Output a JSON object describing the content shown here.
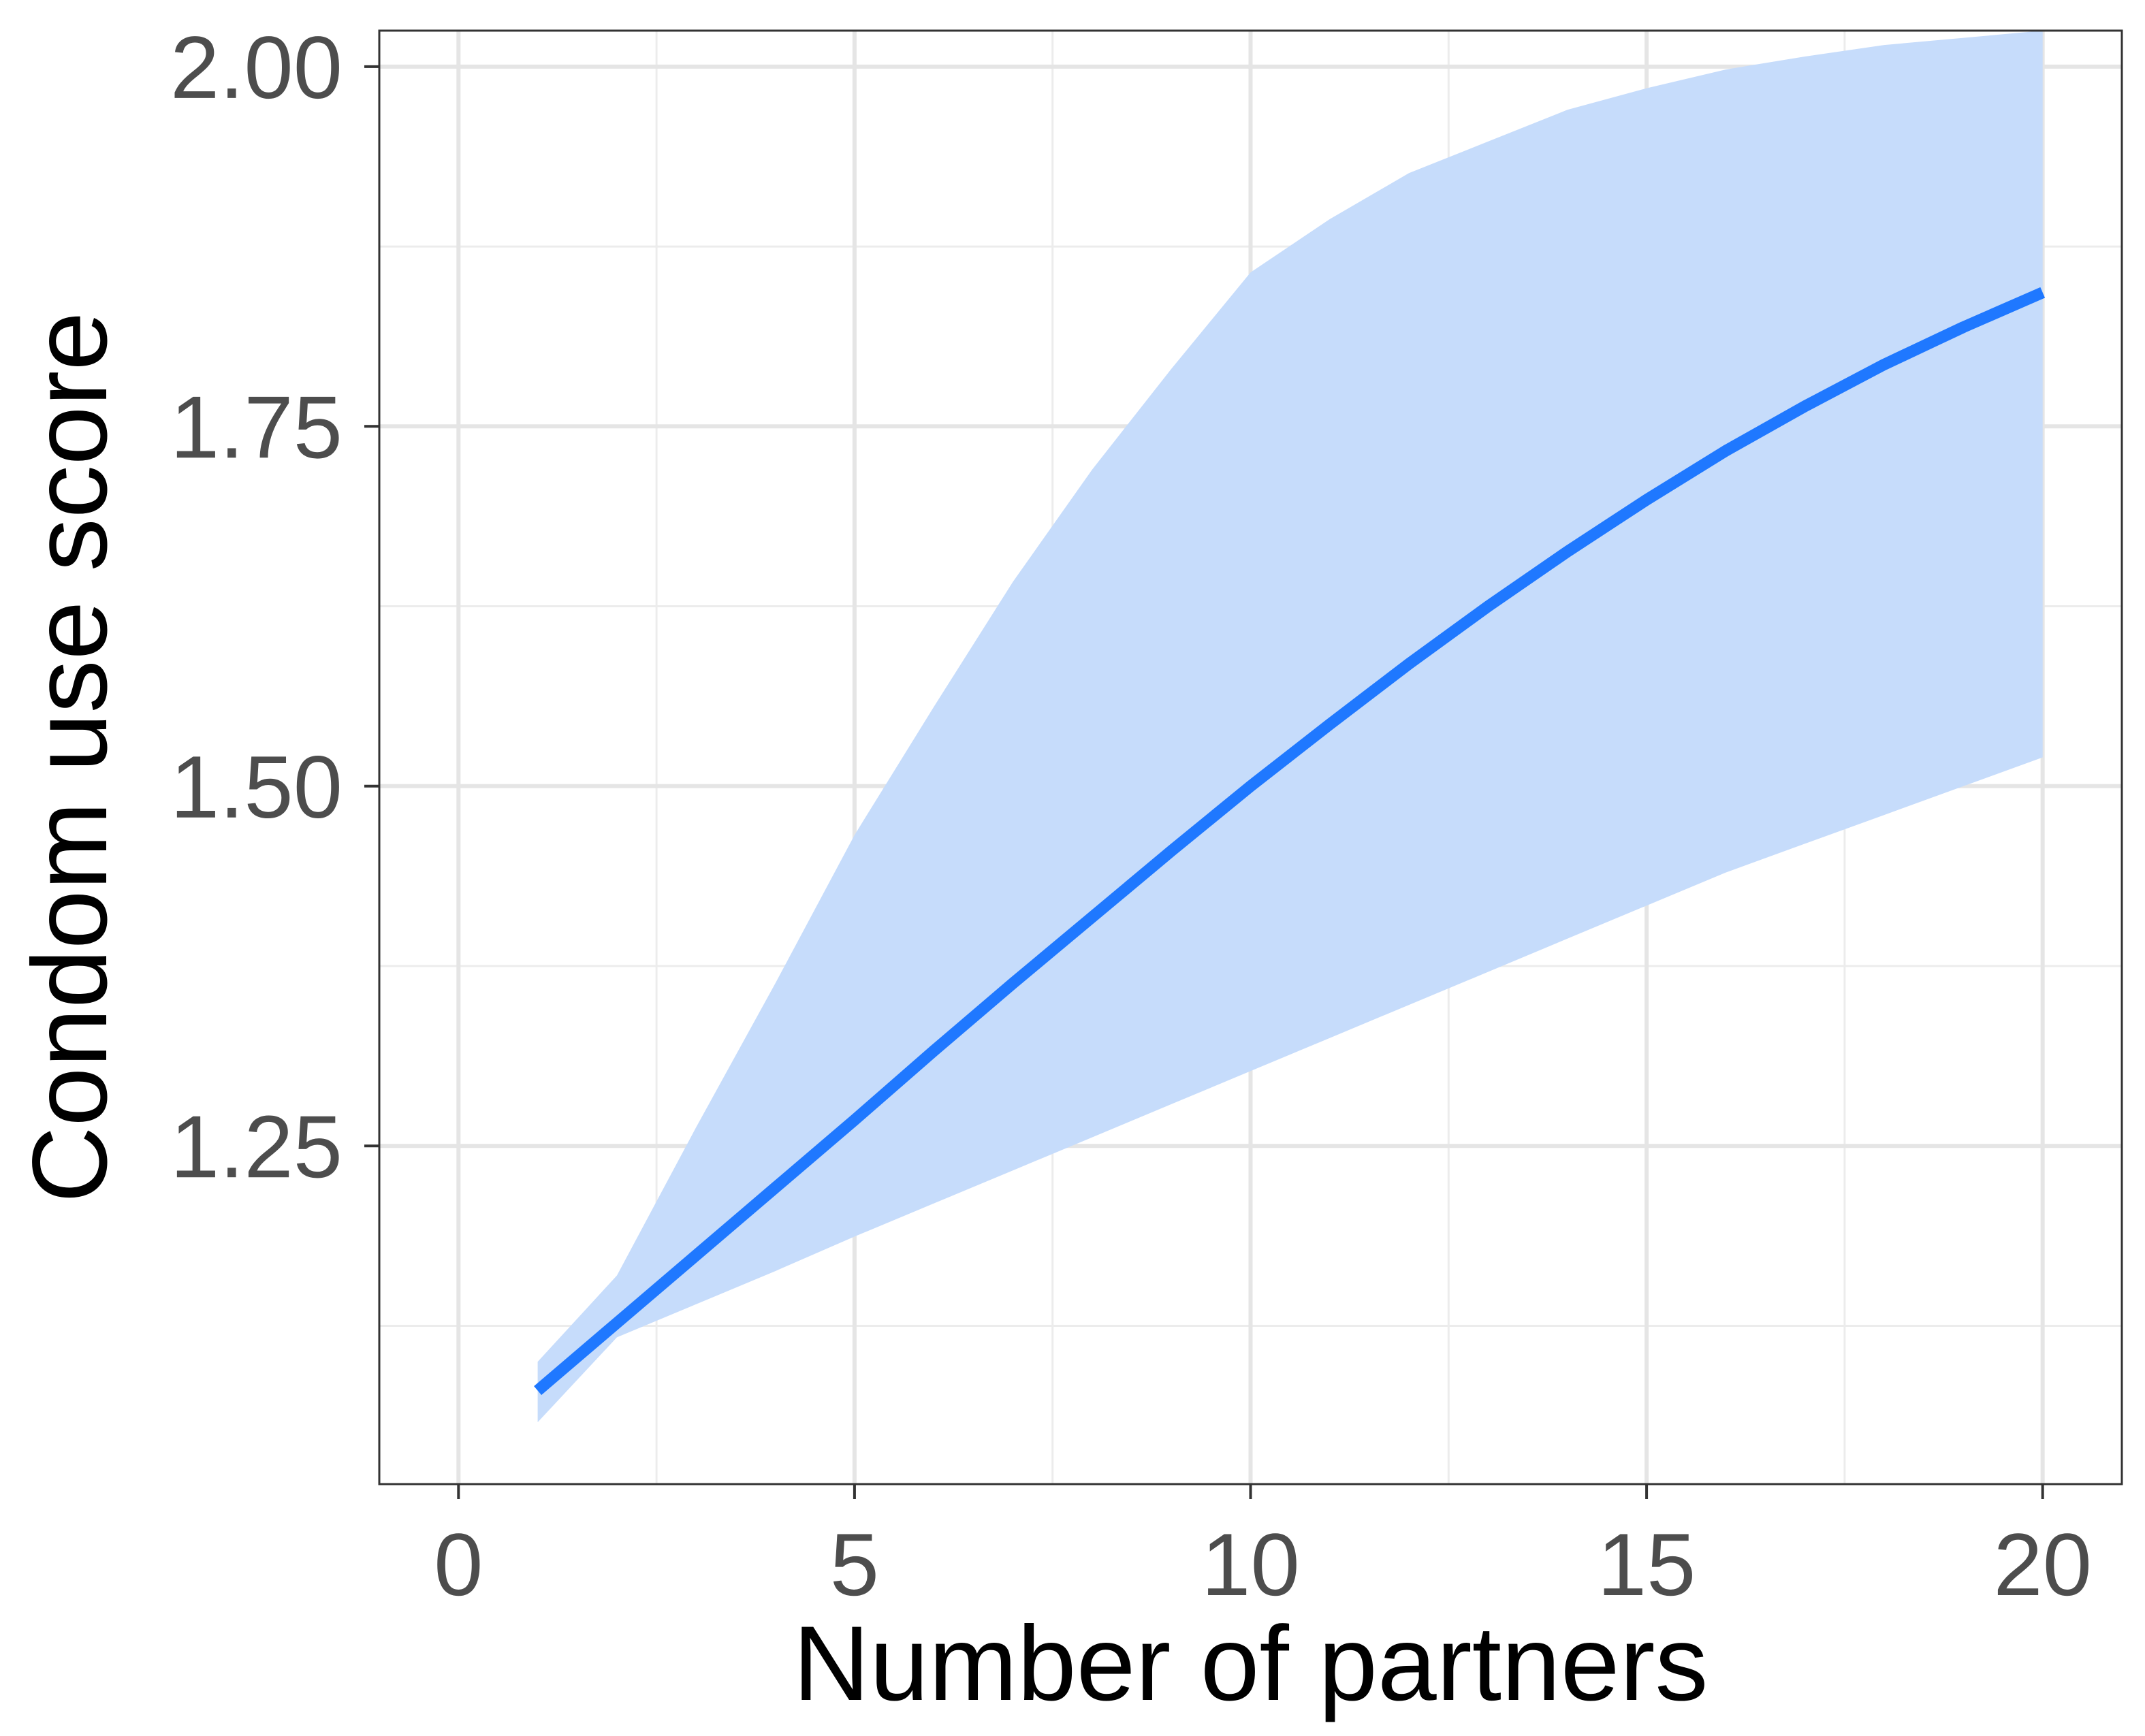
{
  "chart_data": {
    "type": "line",
    "title": "",
    "xlabel": "Number of partners",
    "ylabel": "Condom use score",
    "xlim": [
      -1,
      21
    ],
    "ylim": [
      1.015,
      2.025
    ],
    "x_ticks": [
      0,
      5,
      10,
      15,
      20
    ],
    "x_tick_labels": [
      "0",
      "5",
      "10",
      "15",
      "20"
    ],
    "y_ticks": [
      1.25,
      1.5,
      1.75,
      2.0
    ],
    "y_tick_labels": [
      "1.25",
      "1.50",
      "1.75",
      "2.00"
    ],
    "x_minor_grid": [
      2.5,
      7.5,
      12.5,
      17.5
    ],
    "y_minor_grid": [
      1.125,
      1.375,
      1.625,
      1.875
    ],
    "grid": true,
    "legend": "none",
    "series": [
      {
        "type": "line",
        "color": "#1f78ff",
        "x": [
          1,
          2,
          3,
          4,
          5,
          6,
          7,
          8,
          9,
          10,
          11,
          12,
          13,
          14,
          15,
          16,
          17,
          18,
          19,
          20
        ],
        "y": [
          1.08,
          1.127,
          1.174,
          1.221,
          1.268,
          1.316,
          1.363,
          1.409,
          1.455,
          1.5,
          1.543,
          1.585,
          1.625,
          1.663,
          1.699,
          1.733,
          1.764,
          1.793,
          1.819,
          1.843
        ]
      }
    ],
    "band": {
      "color": "#c6dcfb",
      "x": [
        1,
        2,
        3,
        4,
        5,
        6,
        7,
        8,
        9,
        10,
        11,
        12,
        13,
        14,
        15,
        16,
        17,
        18,
        19,
        20
      ],
      "lower": [
        1.058,
        1.117,
        1.14,
        1.163,
        1.187,
        1.21,
        1.233,
        1.256,
        1.279,
        1.302,
        1.325,
        1.348,
        1.371,
        1.394,
        1.417,
        1.44,
        1.46,
        1.48,
        1.5,
        1.52
      ],
      "upper": [
        1.1,
        1.16,
        1.263,
        1.363,
        1.466,
        1.555,
        1.642,
        1.72,
        1.79,
        1.857,
        1.894,
        1.926,
        1.948,
        1.97,
        1.985,
        1.998,
        2.007,
        2.015,
        2.02,
        2.025
      ]
    },
    "style": {
      "panel_border": "#333333",
      "major_grid": "#e5e5e5",
      "minor_grid": "#ececec",
      "tick_color": "#333333"
    }
  }
}
